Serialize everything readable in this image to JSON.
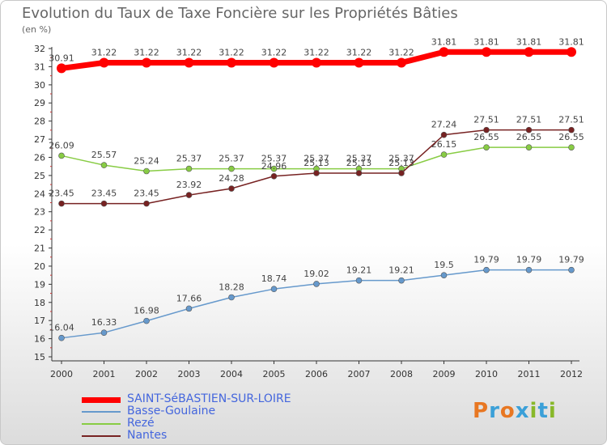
{
  "chart_data": {
    "type": "line",
    "title": "Evolution du Taux de Taxe Foncière sur les Propriétés Bâties",
    "subtitle": "(en %)",
    "x": [
      "2000",
      "2001",
      "2002",
      "2003",
      "2004",
      "2005",
      "2006",
      "2007",
      "2008",
      "2009",
      "2010",
      "2011",
      "2012"
    ],
    "yticks": [
      15,
      16,
      17,
      18,
      19,
      20,
      21,
      22,
      23,
      24,
      25,
      26,
      27,
      28,
      29,
      30,
      31,
      32
    ],
    "ylim": [
      15,
      32
    ],
    "grid": false,
    "legend_position": "bottom-left",
    "series": [
      {
        "name": "SAINT-SéBASTIEN-SUR-LOIRE",
        "color": "#ff0000",
        "values": [
          30.91,
          31.22,
          31.22,
          31.22,
          31.22,
          31.22,
          31.22,
          31.22,
          31.22,
          31.81,
          31.81,
          31.81,
          31.81
        ],
        "labels": [
          "30.91",
          "31.22",
          "31.22",
          "31.22",
          "31.22",
          "31.22",
          "31.22",
          "31.22",
          "31.22",
          "31.81",
          "31.81",
          "31.81",
          "31.81"
        ]
      },
      {
        "name": "Basse-Goulaine",
        "color": "#6699cc",
        "values": [
          16.04,
          16.33,
          16.98,
          17.66,
          18.28,
          18.74,
          19.02,
          19.21,
          19.21,
          19.5,
          19.79,
          19.79,
          19.79
        ],
        "labels": [
          "16.04",
          "16.33",
          "16.98",
          "17.66",
          "18.28",
          "18.74",
          "19.02",
          "19.21",
          "19.21",
          "19.5",
          "19.79",
          "19.79",
          "19.79"
        ]
      },
      {
        "name": "Rezé",
        "color": "#88cc44",
        "values": [
          26.09,
          25.57,
          25.24,
          25.37,
          25.37,
          25.37,
          25.37,
          25.37,
          25.37,
          26.15,
          26.55,
          26.55,
          26.55
        ],
        "labels": [
          "26.09",
          "25.57",
          "25.24",
          "25.37",
          "25.37",
          "25.37",
          "25.37",
          "25.37",
          "25.37",
          "26.15",
          "26.55",
          "26.55",
          "26.55"
        ]
      },
      {
        "name": "Nantes",
        "color": "#772222",
        "values": [
          23.45,
          23.45,
          23.45,
          23.92,
          24.28,
          24.96,
          25.13,
          25.13,
          25.13,
          27.24,
          27.51,
          27.51,
          27.51
        ],
        "labels": [
          "23.45",
          "23.45",
          "23.45",
          "23.92",
          "24.28",
          "24.96",
          "25.13",
          "25.13",
          "25.13",
          "27.24",
          "27.51",
          "27.51",
          "27.51"
        ]
      }
    ]
  },
  "brand": {
    "letters": [
      "P",
      "r",
      "o",
      "x",
      "i",
      "t",
      "i"
    ],
    "colors": [
      "#e87722",
      "#3ba0d8",
      "#e87722",
      "#3ba0d8",
      "#88b82a",
      "#3ba0d8",
      "#88b82a"
    ]
  }
}
